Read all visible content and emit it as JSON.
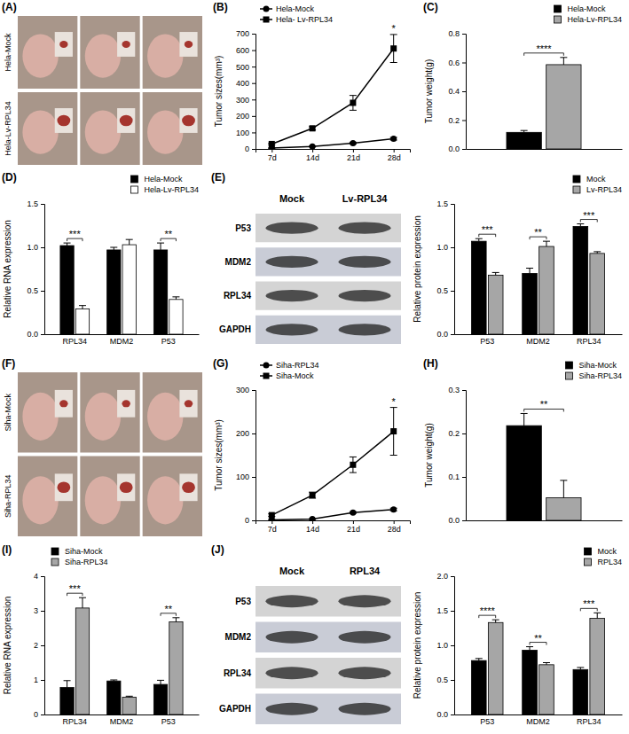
{
  "chart_data": [
    {
      "type": "line",
      "title": "(B)",
      "categories": [
        "7d",
        "14d",
        "21d",
        "28d"
      ],
      "y_label": "Tumor sizes(mm³)",
      "series": [
        {
          "name": "Hela-Mock",
          "color": "#000000",
          "marker": "circle",
          "values": [
            5,
            15,
            35,
            62
          ],
          "errors": [
            2,
            3,
            6,
            8
          ]
        },
        {
          "name": "Hela- Lv-RPL34",
          "color": "#000000",
          "marker": "square",
          "values": [
            30,
            125,
            280,
            610
          ],
          "errors": [
            5,
            10,
            45,
            85
          ]
        }
      ],
      "ylim": [
        0,
        700
      ],
      "yticks": [
        0,
        100,
        200,
        300,
        400,
        500,
        600,
        700
      ],
      "legend": "top-left",
      "annotations": [
        {
          "text": "*",
          "category": "28d"
        }
      ]
    },
    {
      "type": "bar",
      "title": "(C)",
      "categories": [
        null
      ],
      "y_label": "Tumor weight(g)",
      "series": [
        {
          "name": "Hela-Mock",
          "color": "#000000",
          "values": [
            0.115
          ],
          "errors": [
            0.013
          ]
        },
        {
          "name": "Hela-Lv-RPL34",
          "color": "#a6a6a6",
          "values": [
            0.585
          ],
          "errors": [
            0.05
          ]
        }
      ],
      "ylim": [
        0,
        0.8
      ],
      "yticks": [
        {
          "value": 0,
          "label": "0.0"
        },
        0.2,
        0.4,
        0.6,
        0.8
      ],
      "legend": "top-right",
      "annotations": [
        {
          "text": "****"
        }
      ]
    },
    {
      "type": "bar",
      "title": "(D)",
      "categories": [
        "RPL34",
        "MDM2",
        "P53"
      ],
      "y_label": "Relative RNA expression",
      "series": [
        {
          "name": "Hela-Mock",
          "color": "#000000",
          "values": [
            1.02,
            0.97,
            0.97
          ],
          "errors": [
            0.03,
            0.03,
            0.08
          ]
        },
        {
          "name": "Hela-Lv-RPL34",
          "color": "#ffffff",
          "values": [
            0.29,
            1.03,
            0.4
          ],
          "errors": [
            0.04,
            0.06,
            0.03
          ]
        }
      ],
      "ylim": [
        0,
        1.5
      ],
      "yticks": [
        {
          "value": 0,
          "label": "0.0"
        },
        0.5,
        {
          "value": 1,
          "label": "1.0"
        },
        1.5
      ],
      "legend": "top-right",
      "annotations": [
        {
          "text": "***",
          "category": "RPL34"
        },
        {
          "text": "**",
          "category": "P53"
        }
      ]
    },
    {
      "type": "bar",
      "categories": [
        "P53",
        "MDM2",
        "RPL34"
      ],
      "y_label": "Relative protein expression",
      "series": [
        {
          "name": "Mock",
          "color": "#000000",
          "values": [
            1.07,
            0.7,
            1.24
          ],
          "errors": [
            0.03,
            0.06,
            0.03
          ]
        },
        {
          "name": "Lv-RPL34",
          "color": "#a6a6a6",
          "values": [
            0.68,
            1.01,
            0.93
          ],
          "errors": [
            0.03,
            0.06,
            0.02
          ]
        }
      ],
      "ylim": [
        0,
        1.5
      ],
      "yticks": [
        {
          "value": 0,
          "label": "0.0"
        },
        0.5,
        {
          "value": 1,
          "label": "1.0"
        },
        1.5
      ],
      "legend": "top-right",
      "annotations": [
        {
          "text": "***",
          "category": "P53"
        },
        {
          "text": "**",
          "category": "MDM2"
        },
        {
          "text": "***",
          "category": "RPL34"
        }
      ]
    },
    {
      "type": "line",
      "title": "(G)",
      "categories": [
        "7d",
        "14d",
        "21d",
        "28d"
      ],
      "y_label": "Tumor sizes(mm³)",
      "series": [
        {
          "name": "Siha-RPL34",
          "color": "#000000",
          "marker": "circle",
          "values": [
            1,
            3,
            18,
            25
          ],
          "errors": [
            1,
            1,
            2,
            3
          ]
        },
        {
          "name": "Siha-Mock",
          "color": "#000000",
          "marker": "square",
          "values": [
            12,
            58,
            128,
            205
          ],
          "errors": [
            3,
            7,
            18,
            55
          ]
        }
      ],
      "ylim": [
        0,
        300
      ],
      "yticks": [
        0,
        100,
        200,
        300
      ],
      "legend": "top-left",
      "annotations": [
        {
          "text": "*",
          "category": "28d"
        }
      ]
    },
    {
      "type": "bar",
      "title": "(H)",
      "categories": [
        null
      ],
      "y_label": "Tumor weight(g)",
      "series": [
        {
          "name": "Siha-Mock",
          "color": "#000000",
          "values": [
            0.218
          ],
          "errors": [
            0.028
          ]
        },
        {
          "name": "Siha-RPL34",
          "color": "#a6a6a6",
          "values": [
            0.052
          ],
          "errors": [
            0.04
          ]
        }
      ],
      "ylim": [
        0,
        0.3
      ],
      "yticks": [
        {
          "value": 0,
          "label": "0.0"
        },
        0.1,
        0.2,
        0.3
      ],
      "legend": "top-right",
      "annotations": [
        {
          "text": "**"
        }
      ]
    },
    {
      "type": "bar",
      "title": "(I)",
      "categories": [
        "RPL34",
        "MDM2",
        "P53"
      ],
      "y_label": "Relative RNA expression",
      "series": [
        {
          "name": "Siha-Mock",
          "color": "#000000",
          "values": [
            0.78,
            0.97,
            0.87
          ],
          "errors": [
            0.2,
            0.03,
            0.12
          ]
        },
        {
          "name": "Siha-RPL34",
          "color": "#a6a6a6",
          "values": [
            3.08,
            0.5,
            2.68
          ],
          "errors": [
            0.3,
            0.03,
            0.12
          ]
        }
      ],
      "ylim": [
        0,
        4
      ],
      "yticks": [
        0,
        1,
        2,
        3,
        4
      ],
      "legend": "top-left",
      "annotations": [
        {
          "text": "***",
          "category": "RPL34"
        },
        {
          "text": "**",
          "category": "P53"
        }
      ]
    },
    {
      "type": "bar",
      "categories": [
        "P53",
        "MDM2",
        "RPL34"
      ],
      "y_label": "Relative protein expression",
      "series": [
        {
          "name": "Mock",
          "color": "#000000",
          "values": [
            0.78,
            0.93,
            0.65
          ],
          "errors": [
            0.03,
            0.05,
            0.03
          ]
        },
        {
          "name": "RPL34",
          "color": "#a6a6a6",
          "values": [
            1.33,
            0.72,
            1.39
          ],
          "errors": [
            0.04,
            0.03,
            0.08
          ]
        }
      ],
      "ylim": [
        0,
        2
      ],
      "yticks": [
        {
          "value": 0,
          "label": "0.0"
        },
        0.5,
        {
          "value": 1,
          "label": "1.0"
        },
        1.5,
        {
          "value": 2,
          "label": "2.0"
        }
      ],
      "legend": "top-right",
      "annotations": [
        {
          "text": "****",
          "category": "P53"
        },
        {
          "text": "**",
          "category": "MDM2"
        },
        {
          "text": "***",
          "category": "RPL34"
        }
      ]
    }
  ],
  "figure": {
    "photos": [
      {
        "panel": "(A)",
        "rows": [
          "Hela-Mock",
          "Hela-Lv-RPL34"
        ]
      },
      {
        "panel": "(F)",
        "rows": [
          "Siha-Mock",
          "Siha-RPL34"
        ]
      }
    ],
    "blots": [
      {
        "panel": "(E)",
        "columns": [
          "Mock",
          "Lv-RPL34"
        ],
        "rows": [
          "P53",
          "MDM2",
          "RPL34",
          "GAPDH"
        ]
      },
      {
        "panel": "(J)",
        "columns": [
          "Mock",
          "RPL34"
        ],
        "rows": [
          "P53",
          "MDM2",
          "RPL34",
          "GAPDH"
        ]
      }
    ]
  }
}
